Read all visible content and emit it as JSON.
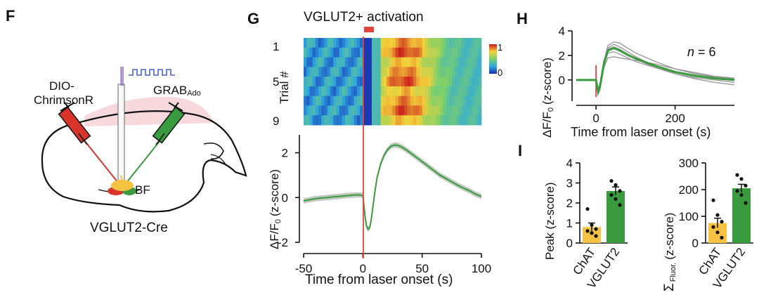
{
  "panels": {
    "F": {
      "letter": "F",
      "virus_left": "DIO-",
      "virus_left_2": "ChrimsonR",
      "sensor": "GRAB",
      "sensor_sub": "Ado",
      "region": "BF",
      "mouse_line": "VGLUT2-Cre"
    },
    "G": {
      "letter": "G",
      "title": "VGLUT2+ activation",
      "heatmap_ylabel": "Trial #",
      "heatmap_yticks": [
        "1",
        "5",
        "9"
      ],
      "colorbar_ticks": [
        "1",
        "0"
      ],
      "trace_ylabel_main": "ΔF/F",
      "trace_ylabel_sub": "0",
      "trace_ylabel_tail": "(z-score)",
      "xlabel": "Time from laser onset (s)"
    },
    "H": {
      "letter": "H",
      "n_label_italic": "n",
      "n_label_rest": "= 6",
      "ylabel_main": "ΔF/F",
      "ylabel_sub": "0",
      "ylabel_tail": "(z-score)",
      "xlabel": "Time from laser onset (s)"
    },
    "I": {
      "letter": "I",
      "left_ylabel": "Peak (z-score)",
      "right_ylabel_sigma": "Σ",
      "right_ylabel_sub": "Fluor.",
      "right_ylabel_tail": "(z-score)"
    }
  },
  "colors": {
    "green": "#3a9a3e",
    "green_light": "#bfc9bf",
    "yellow": "#f5c242",
    "laser_red": "#e0443e",
    "gray_trace": "#9a9a9a"
  },
  "chart_data": [
    {
      "id": "G-heatmap",
      "type": "heatmap",
      "ylabel": "Trial #",
      "x_range": [
        -50,
        100
      ],
      "y_ticks": [
        1,
        5,
        9
      ],
      "color_range": [
        0,
        1
      ],
      "colorbar_ticks": [
        1,
        0
      ],
      "rows": 9
    },
    {
      "id": "G-trace",
      "type": "line",
      "xlabel": "Time from laser onset (s)",
      "ylabel": "ΔF/F0 (z-score)",
      "xlim": [
        -50,
        100
      ],
      "ylim": [
        -2,
        2.8
      ],
      "xticks": [
        -50,
        0,
        50,
        100
      ],
      "yticks": [
        -2,
        0,
        2
      ],
      "x": [
        -50,
        -45,
        -40,
        -35,
        -30,
        -25,
        -20,
        -15,
        -10,
        -5,
        0,
        1,
        2,
        3,
        4,
        5,
        6,
        7,
        8,
        10,
        12,
        15,
        18,
        21,
        24,
        27,
        30,
        33,
        36,
        40,
        45,
        50,
        55,
        60,
        65,
        70,
        75,
        80,
        85,
        90,
        95,
        100
      ],
      "y": [
        -0.15,
        -0.1,
        -0.05,
        -0.02,
        0.0,
        0.03,
        0.05,
        0.08,
        0.1,
        0.12,
        0.1,
        -0.4,
        -0.9,
        -1.25,
        -1.4,
        -1.4,
        -1.3,
        -1.0,
        -0.6,
        0.2,
        0.9,
        1.5,
        1.9,
        2.15,
        2.3,
        2.35,
        2.32,
        2.25,
        2.15,
        2.0,
        1.8,
        1.6,
        1.4,
        1.2,
        1.0,
        0.85,
        0.7,
        0.55,
        0.42,
        0.3,
        0.15,
        0.05
      ]
    },
    {
      "id": "H",
      "type": "line",
      "xlabel": "Time from laser onset (s)",
      "ylabel": "ΔF/F0 (z-score)",
      "xlim": [
        -50,
        350
      ],
      "ylim": [
        -1.5,
        4
      ],
      "xticks": [
        0,
        200
      ],
      "yticks": [
        0,
        2,
        4
      ],
      "series": [
        {
          "x": [
            -50,
            -10,
            0,
            5,
            10,
            20,
            30,
            45,
            60,
            80,
            100,
            150,
            200,
            250,
            300,
            350
          ],
          "y": [
            0,
            0,
            0,
            -0.9,
            -0.6,
            1.2,
            2.2,
            2.3,
            2.1,
            1.8,
            1.5,
            1.0,
            0.6,
            0.35,
            0.2,
            0.1
          ]
        },
        {
          "x": [
            -50,
            -10,
            0,
            5,
            10,
            20,
            30,
            45,
            60,
            80,
            100,
            150,
            200,
            250,
            300,
            350
          ],
          "y": [
            0,
            0,
            0,
            -1.2,
            -0.8,
            1.5,
            2.8,
            3.1,
            3.0,
            2.6,
            2.2,
            1.5,
            0.9,
            0.5,
            0.25,
            0.1
          ]
        },
        {
          "x": [
            -50,
            -10,
            0,
            5,
            10,
            20,
            30,
            45,
            60,
            80,
            100,
            150,
            200,
            250,
            300,
            350
          ],
          "y": [
            0,
            0,
            0,
            -0.8,
            -0.4,
            1.4,
            2.6,
            2.9,
            2.7,
            2.3,
            1.9,
            1.1,
            0.5,
            0.1,
            -0.2,
            -0.4
          ]
        },
        {
          "x": [
            -50,
            -10,
            0,
            5,
            10,
            20,
            30,
            45,
            60,
            80,
            100,
            150,
            200,
            250,
            300,
            350
          ],
          "y": [
            0,
            0,
            0,
            -1.0,
            -0.5,
            1.0,
            1.8,
            1.9,
            1.8,
            1.7,
            1.6,
            1.3,
            0.9,
            0.6,
            0.3,
            0.15
          ]
        },
        {
          "x": [
            -50,
            -10,
            0,
            5,
            10,
            20,
            30,
            45,
            60,
            80,
            100,
            150,
            200,
            250,
            300,
            350
          ],
          "y": [
            0,
            0,
            0,
            -1.1,
            -0.7,
            1.3,
            2.4,
            2.6,
            2.4,
            2.0,
            1.7,
            1.1,
            0.6,
            0.3,
            0.15,
            0.05
          ]
        },
        {
          "x": [
            -50,
            -10,
            0,
            5,
            10,
            20,
            30,
            45,
            60,
            80,
            100,
            150,
            200,
            250,
            300,
            350
          ],
          "y": [
            0,
            0,
            0,
            -0.7,
            -0.3,
            1.6,
            2.5,
            2.7,
            2.5,
            2.1,
            1.7,
            1.0,
            0.5,
            0.2,
            0.0,
            -0.2
          ]
        }
      ],
      "mean": {
        "x": [
          -50,
          -10,
          0,
          5,
          10,
          20,
          30,
          45,
          60,
          80,
          100,
          150,
          200,
          250,
          300,
          350
        ],
        "y": [
          0,
          0,
          0,
          -0.95,
          -0.55,
          1.35,
          2.4,
          2.6,
          2.4,
          2.05,
          1.75,
          1.15,
          0.65,
          0.35,
          0.13,
          0.0
        ]
      }
    },
    {
      "id": "I-peak",
      "type": "bar",
      "ylabel": "Peak (z-score)",
      "categories": [
        "ChAT",
        "VGLUT2"
      ],
      "values": [
        0.8,
        2.6
      ],
      "errors": [
        0.2,
        0.2
      ],
      "ylim": [
        0,
        4
      ],
      "yticks": [
        0,
        1,
        2,
        3,
        4
      ],
      "points": [
        [
          1.7,
          0.9,
          0.7,
          0.6,
          0.5,
          0.35
        ],
        [
          3.1,
          2.9,
          2.6,
          2.4,
          2.2,
          1.9
        ]
      ]
    },
    {
      "id": "I-sum",
      "type": "bar",
      "ylabel": "Σ Fluor. (z-score)",
      "categories": [
        "ChAT",
        "VGLUT2"
      ],
      "values": [
        75,
        205
      ],
      "errors": [
        18,
        15
      ],
      "ylim": [
        0,
        300
      ],
      "yticks": [
        0,
        100,
        200,
        300
      ],
      "points": [
        [
          160,
          105,
          80,
          60,
          40,
          20
        ],
        [
          255,
          240,
          215,
          195,
          180,
          150
        ]
      ]
    }
  ]
}
